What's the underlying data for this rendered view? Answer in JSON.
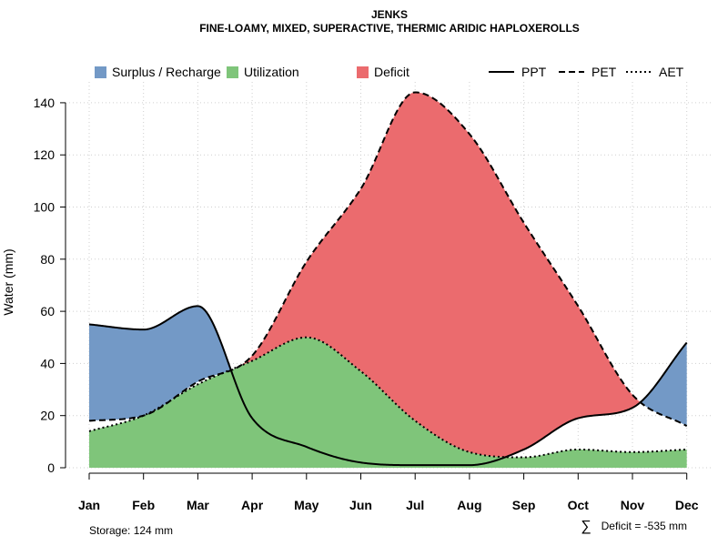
{
  "chart_data": {
    "type": "area",
    "title": "JENKS",
    "subtitle": "FINE-LOAMY, MIXED, SUPERACTIVE, THERMIC ARIDIC HAPLOXEROLLS",
    "ylabel": "Water (mm)",
    "xlabel": "",
    "ylim": [
      0,
      148
    ],
    "yticks": [
      0,
      20,
      40,
      60,
      80,
      100,
      120,
      140
    ],
    "categories": [
      "Jan",
      "Feb",
      "Mar",
      "Apr",
      "May",
      "Jun",
      "Jul",
      "Aug",
      "Sep",
      "Oct",
      "Nov",
      "Dec"
    ],
    "series": [
      {
        "name": "PPT",
        "style": "solid",
        "values": [
          55,
          53,
          62,
          19,
          8,
          2,
          1,
          1,
          7,
          19,
          23,
          48
        ]
      },
      {
        "name": "PET",
        "style": "dashed",
        "values": [
          18,
          20,
          33,
          43,
          79,
          107,
          144,
          128,
          94,
          62,
          28,
          16
        ]
      },
      {
        "name": "AET",
        "style": "dotted",
        "values": [
          14,
          20,
          32,
          41,
          50,
          37,
          18,
          6,
          4,
          7,
          6,
          7
        ]
      }
    ],
    "legend": {
      "placement": "top",
      "fills": [
        {
          "label": "Surplus / Recharge",
          "color": "#7399C6"
        },
        {
          "label": "Utilization",
          "color": "#7FC57A"
        },
        {
          "label": "Deficit",
          "color": "#EB6B6E"
        }
      ],
      "lines": [
        "PPT",
        "PET",
        "AET"
      ]
    },
    "footnotes": {
      "storage": "Storage: 124 mm",
      "deficit": "Deficit = -535 mm",
      "deficit_symbol": "∑"
    },
    "colors": {
      "surplus": "#7399C6",
      "utilization": "#7FC57A",
      "deficit": "#EB6B6E",
      "grid": "#cfcfcf",
      "line": "#000000"
    }
  }
}
